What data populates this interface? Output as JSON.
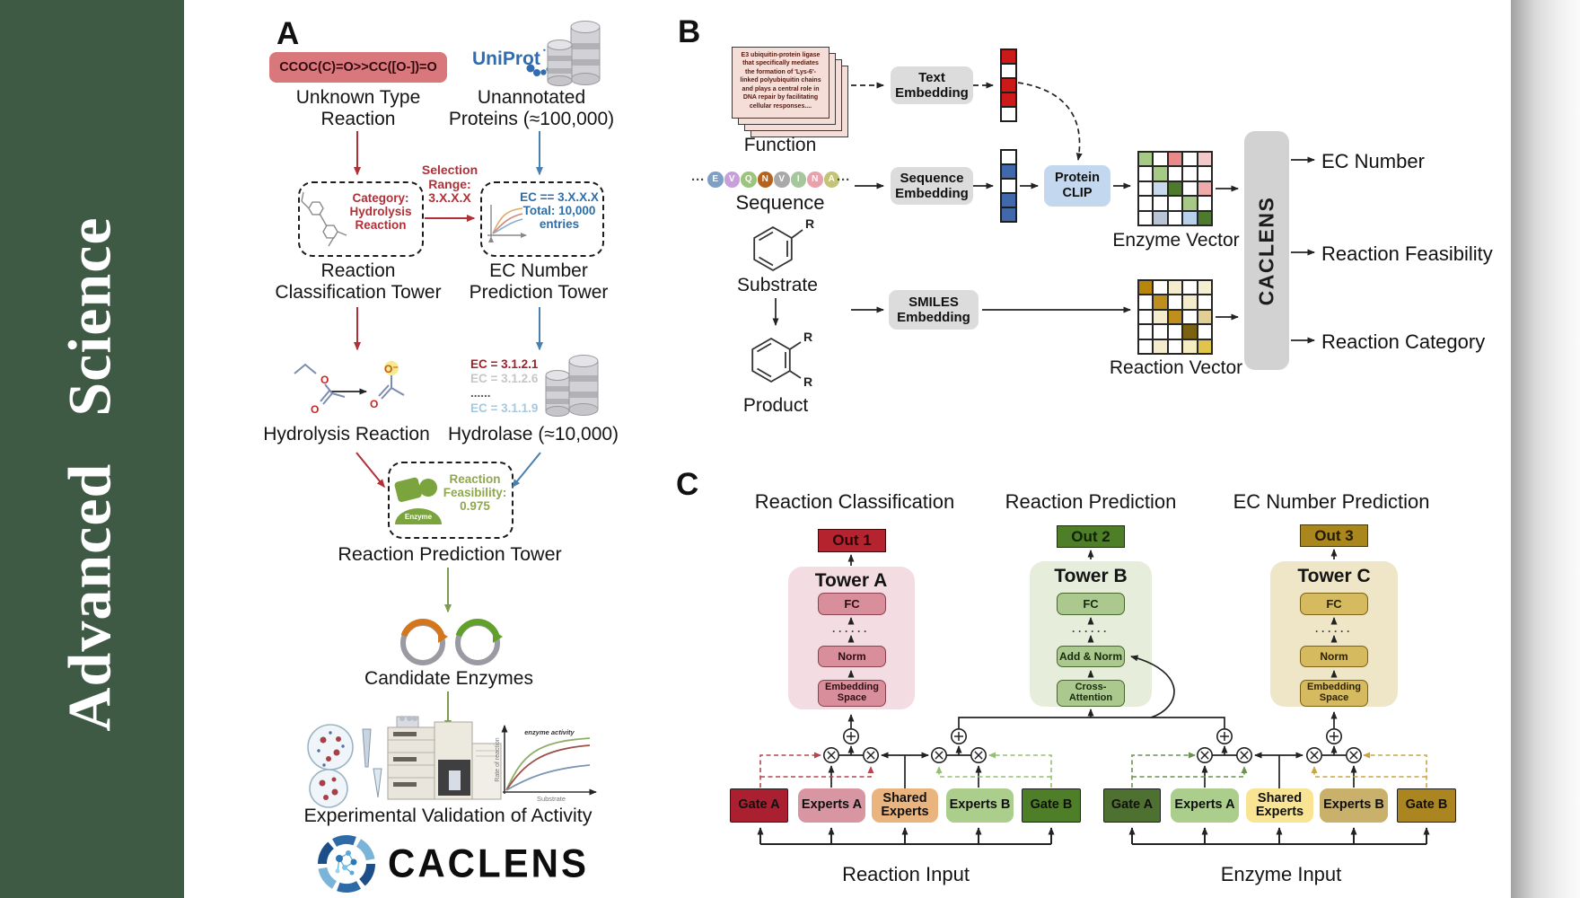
{
  "sidebar": {
    "journal": "Advanced Science",
    "bg": "#3e5a44"
  },
  "panel_a": {
    "label": "A",
    "smiles": "CCOC(C)=O>>CC([O-])=O",
    "unknown_reaction": "Unknown Type\nReaction",
    "uniprot": "UniProt",
    "unannotated": "Unannotated\nProteins (≈100,000)",
    "selection_range": "Selection\nRange:\n3.X.X.X",
    "category": "Category:\nHydrolysis\nReaction",
    "ec_filter": "EC == 3.X.X.X\nTotal: 10,000\nentries",
    "tower1": "Reaction\nClassification Tower",
    "tower2": "EC Number\nPrediction Tower",
    "ec_list": [
      {
        "text": "EC = 3.1.2.1",
        "color": "#a02028",
        "bold": true
      },
      {
        "text": "EC = 3.1.2.6",
        "color": "#c6c6c6"
      },
      {
        "text": "......",
        "color": "#555555"
      },
      {
        "text": "EC = 3.1.1.9",
        "color": "#a6c8e0"
      }
    ],
    "hydrolysis": "Hydrolysis Reaction",
    "hydrolase": "Hydrolase (≈10,000)",
    "atoms": {
      "o": "O",
      "o_minus": "O⁻"
    },
    "enzyme_badge": "Enzyme",
    "feasibility": "Reaction\nFeasibility:\n0.975",
    "tower3": "Reaction Prediction Tower",
    "candidates": "Candidate Enzymes",
    "activity_chart": {
      "title": "enzyme activity",
      "xlabel": "Substrate",
      "ylabel": "Rate of reaction"
    },
    "validation": "Experimental Validation of Activity",
    "brand": "CACLENS"
  },
  "panel_b": {
    "label": "B",
    "function_text": "E3 ubiquitin-protein ligase that specifically mediates the formation of 'Lys-6'-linked polyubiquitin chains and plays a central role in DNA repair by facilitating cellular responses....",
    "function_label": "Function",
    "ellipsis": "···",
    "residues": [
      {
        "letter": "E",
        "color": "#7f9fc4"
      },
      {
        "letter": "V",
        "color": "#c79fdb"
      },
      {
        "letter": "Q",
        "color": "#9cc47e"
      },
      {
        "letter": "N",
        "color": "#b5621e"
      },
      {
        "letter": "V",
        "color": "#a9a9a9"
      },
      {
        "letter": "I",
        "color": "#a5c79b"
      },
      {
        "letter": "N",
        "color": "#e8a2ab"
      },
      {
        "letter": "A",
        "color": "#c3c478"
      }
    ],
    "sequence_label": "Sequence",
    "substrate_label": "Substrate",
    "product_label": "Product",
    "r": "R",
    "text_embedding": "Text\nEmbedding",
    "sequence_embedding": "Sequence\nEmbedding",
    "smiles_embedding": "SMILES\nEmbedding",
    "protein_clip": "Protein\nCLIP",
    "text_vector": [
      "#cc1a1a",
      "#ffffff",
      "#cc1a1a",
      "#cc1a1a",
      "#ffffff"
    ],
    "seq_vector": [
      "#ffffff",
      "#4068aa",
      "#ffffff",
      "#4068aa",
      "#4068aa"
    ],
    "enzyme_matrix": [
      [
        "#a6c986",
        "#ffffff",
        "#e98a8a",
        "#ffffff",
        "#f2c9c9"
      ],
      [
        "#ffffff",
        "#a6c986",
        "#ffffff",
        "#ffffff",
        "#ffffff"
      ],
      [
        "#ffffff",
        "#c8daee",
        "#4e7a2e",
        "#ffffff",
        "#eeabab"
      ],
      [
        "#ffffff",
        "#ffffff",
        "#ffffff",
        "#a6c986",
        "#ffffff"
      ],
      [
        "#ffffff",
        "#b9c5d6",
        "#ffffff",
        "#b9d2ec",
        "#4e7a2e"
      ]
    ],
    "reaction_matrix": [
      [
        "#b8860b",
        "#ffffff",
        "#f4ecca",
        "#ffffff",
        "#f6efd2"
      ],
      [
        "#ffffff",
        "#bf8f1d",
        "#ffffff",
        "#f4ecca",
        "#ffffff"
      ],
      [
        "#ffffff",
        "#f4ecca",
        "#bf8f1d",
        "#ffffff",
        "#e2cf96"
      ],
      [
        "#ffffff",
        "#ffffff",
        "#ffffff",
        "#7a6210",
        "#ffffff"
      ],
      [
        "#ffffff",
        "#f4ecca",
        "#ffffff",
        "#f6ecc2",
        "#e3c44a"
      ]
    ],
    "enzyme_vector_label": "Enzyme Vector",
    "reaction_vector_label": "Reaction Vector",
    "caclens": "CACLENS",
    "outputs": [
      "EC Number",
      "Reaction Feasibility",
      "Reaction Category"
    ]
  },
  "panel_c": {
    "label": "C",
    "headings": [
      "Reaction Classification",
      "Reaction Prediction",
      "EC Number Prediction"
    ],
    "towers": [
      {
        "out": "Out 1",
        "name": "Tower A",
        "fc": "FC",
        "dots": "······",
        "mid": "Norm",
        "bottom": "Embedding\nSpace"
      },
      {
        "out": "Out 2",
        "name": "Tower B",
        "fc": "FC",
        "dots": "······",
        "mid": "Add & Norm",
        "bottom": "Cross-\nAttention"
      },
      {
        "out": "Out 3",
        "name": "Tower C",
        "fc": "FC",
        "dots": "······",
        "mid": "Norm",
        "bottom": "Embedding\nSpace"
      }
    ],
    "reaction_group": {
      "gate_a": "Gate A",
      "experts_a": "Experts A",
      "shared": "Shared\nExperts",
      "experts_b": "Experts B",
      "gate_b": "Gate B",
      "input": "Reaction Input"
    },
    "enzyme_group": {
      "gate_a": "Gate A",
      "experts_a": "Experts A",
      "shared": "Shared\nExperts",
      "experts_b": "Experts B",
      "gate_b": "Gate B",
      "input": "Enzyme Input"
    }
  }
}
